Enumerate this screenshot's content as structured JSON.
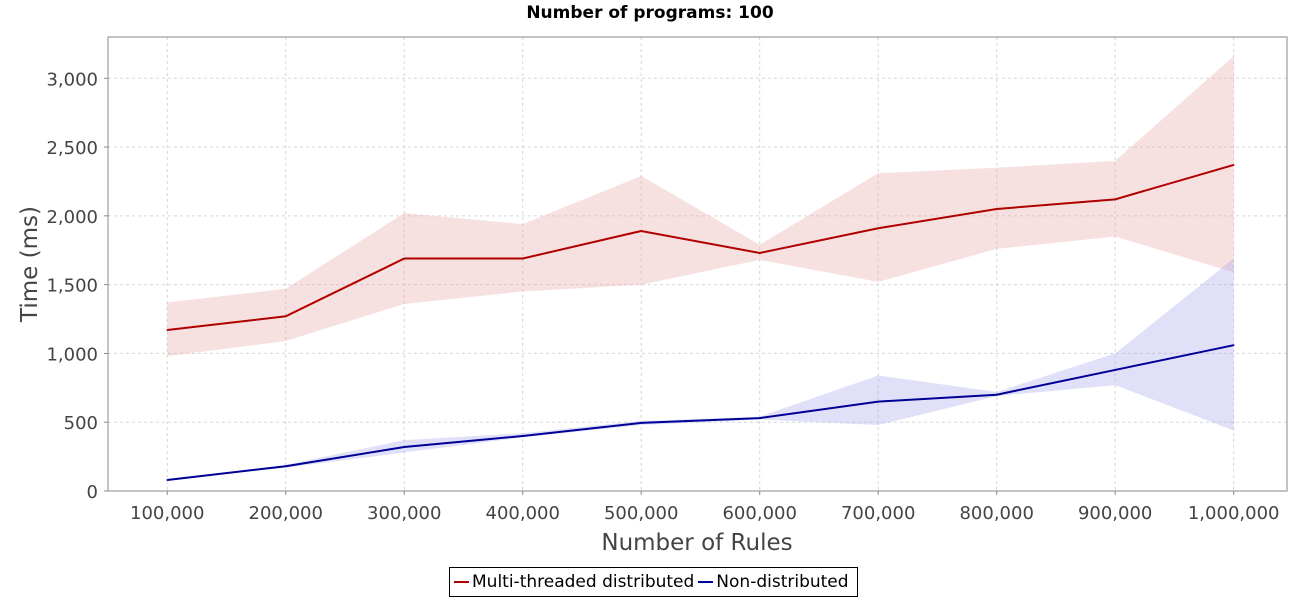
{
  "chart_data": {
    "type": "line",
    "title": "Number of programs: 100",
    "xlabel": "Number of Rules",
    "ylabel": "Time (ms)",
    "x": [
      100000,
      200000,
      300000,
      400000,
      500000,
      600000,
      700000,
      800000,
      900000,
      1000000
    ],
    "x_tick_labels": [
      "100,000",
      "200,000",
      "300,000",
      "400,000",
      "500,000",
      "600,000",
      "700,000",
      "800,000",
      "900,000",
      "1,000,000"
    ],
    "y_ticks": [
      0,
      500,
      1000,
      1500,
      2000,
      2500,
      3000
    ],
    "y_tick_labels": [
      "0",
      "500",
      "1,000",
      "1,500",
      "2,000",
      "2,500",
      "3,000"
    ],
    "xlim": [
      50000,
      1045000
    ],
    "ylim": [
      0,
      3300
    ],
    "grid": true,
    "legend_position": "bottom-center",
    "series": [
      {
        "name": "Multi-threaded distributed",
        "color": "#b00000",
        "band_color": "#e9a6a6",
        "values": [
          1170,
          1270,
          1690,
          1690,
          1890,
          1730,
          1910,
          2050,
          2120,
          2370
        ],
        "lower": [
          980,
          1090,
          1360,
          1450,
          1500,
          1680,
          1520,
          1760,
          1850,
          1590
        ],
        "upper": [
          1370,
          1470,
          2020,
          1940,
          2290,
          1790,
          2310,
          2350,
          2400,
          3160
        ]
      },
      {
        "name": "Non-distributed",
        "color": "#000096",
        "band_color": "#a6a6ec",
        "values": [
          80,
          180,
          320,
          400,
          495,
          530,
          650,
          700,
          880,
          1060
        ],
        "lower": [
          80,
          170,
          280,
          390,
          480,
          520,
          480,
          690,
          770,
          440
        ],
        "upper": [
          80,
          190,
          370,
          420,
          510,
          540,
          840,
          720,
          1000,
          1690
        ]
      }
    ]
  }
}
